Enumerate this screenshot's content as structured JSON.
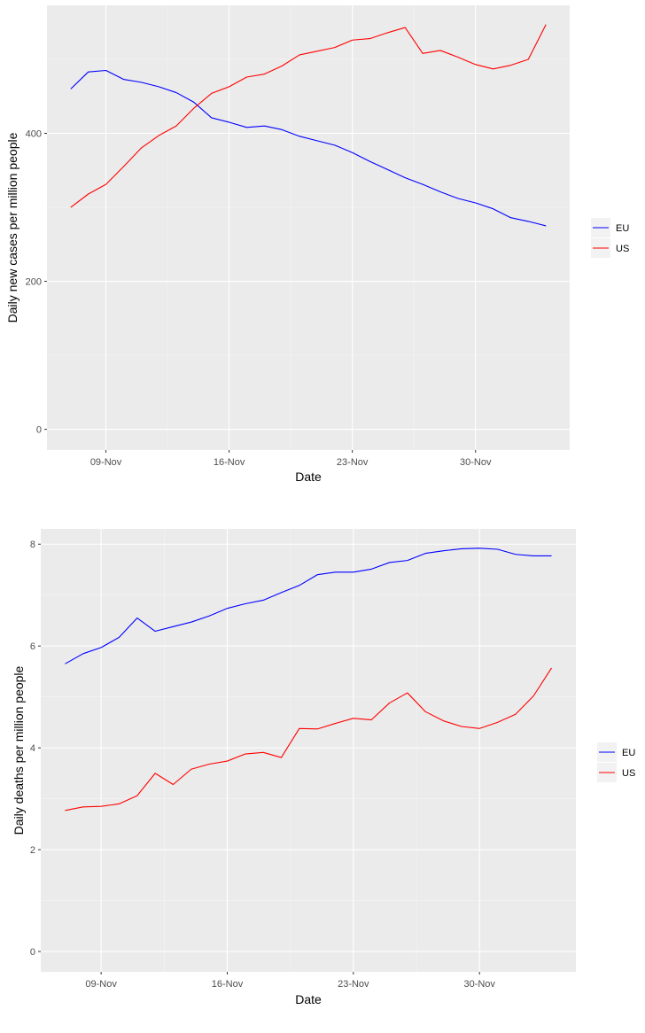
{
  "colors": {
    "panel_background": "#ebebeb",
    "grid_major": "#ffffff",
    "grid_minor": "#f5f5f5",
    "EU": "#0000ff",
    "US": "#ff0000"
  },
  "chart_data": [
    {
      "type": "line",
      "xlabel": "Date",
      "ylabel": "Daily new cases per million people",
      "x_tick_labels": [
        "09-Nov",
        "16-Nov",
        "23-Nov",
        "30-Nov"
      ],
      "y_tick_labels": [
        "0",
        "200",
        "400"
      ],
      "legend_position": "right",
      "grid": true,
      "x": [
        "2020-11-07",
        "2020-11-08",
        "2020-11-09",
        "2020-11-10",
        "2020-11-11",
        "2020-11-12",
        "2020-11-13",
        "2020-11-14",
        "2020-11-15",
        "2020-11-16",
        "2020-11-17",
        "2020-11-18",
        "2020-11-19",
        "2020-11-20",
        "2020-11-21",
        "2020-11-22",
        "2020-11-23",
        "2020-11-24",
        "2020-11-25",
        "2020-11-26",
        "2020-11-27",
        "2020-11-28",
        "2020-11-29",
        "2020-11-30",
        "2020-12-01",
        "2020-12-02",
        "2020-12-03",
        "2020-12-04"
      ],
      "series": [
        {
          "name": "EU",
          "values": [
            460,
            483,
            485,
            473,
            469,
            463,
            455,
            442,
            421,
            415,
            408,
            410,
            405,
            396,
            390,
            384,
            374,
            362,
            351,
            340,
            331,
            321,
            312,
            306,
            298,
            286,
            281,
            275
          ]
        },
        {
          "name": "US",
          "values": [
            300,
            318,
            331,
            355,
            380,
            397,
            410,
            434,
            454,
            463,
            476,
            480,
            491,
            506,
            511,
            516,
            526,
            528,
            536,
            543,
            508,
            512,
            503,
            493,
            487,
            492,
            500,
            547
          ]
        }
      ]
    },
    {
      "type": "line",
      "xlabel": "Date",
      "ylabel": "Daily deaths per million people",
      "x_tick_labels": [
        "09-Nov",
        "16-Nov",
        "23-Nov",
        "30-Nov"
      ],
      "y_tick_labels": [
        "0",
        "2",
        "4",
        "6",
        "8"
      ],
      "legend_position": "right",
      "grid": true,
      "x": [
        "2020-11-07",
        "2020-11-08",
        "2020-11-09",
        "2020-11-10",
        "2020-11-11",
        "2020-11-12",
        "2020-11-13",
        "2020-11-14",
        "2020-11-15",
        "2020-11-16",
        "2020-11-17",
        "2020-11-18",
        "2020-11-19",
        "2020-11-20",
        "2020-11-21",
        "2020-11-22",
        "2020-11-23",
        "2020-11-24",
        "2020-11-25",
        "2020-11-26",
        "2020-11-27",
        "2020-11-28",
        "2020-11-29",
        "2020-11-30",
        "2020-12-01",
        "2020-12-02",
        "2020-12-03",
        "2020-12-04"
      ],
      "series": [
        {
          "name": "EU",
          "values": [
            5.65,
            5.85,
            5.97,
            6.17,
            6.55,
            6.29,
            6.38,
            6.47,
            6.59,
            6.74,
            6.83,
            6.9,
            7.05,
            7.19,
            7.4,
            7.45,
            7.45,
            7.51,
            7.64,
            7.68,
            7.82,
            7.87,
            7.91,
            7.92,
            7.9,
            7.8,
            7.77,
            7.77
          ]
        },
        {
          "name": "US",
          "values": [
            2.77,
            2.84,
            2.85,
            2.9,
            3.06,
            3.5,
            3.28,
            3.58,
            3.68,
            3.74,
            3.88,
            3.91,
            3.81,
            4.38,
            4.37,
            4.48,
            4.58,
            4.55,
            4.88,
            5.08,
            4.71,
            4.53,
            4.42,
            4.38,
            4.5,
            4.66,
            5.02,
            5.57
          ]
        }
      ]
    }
  ]
}
